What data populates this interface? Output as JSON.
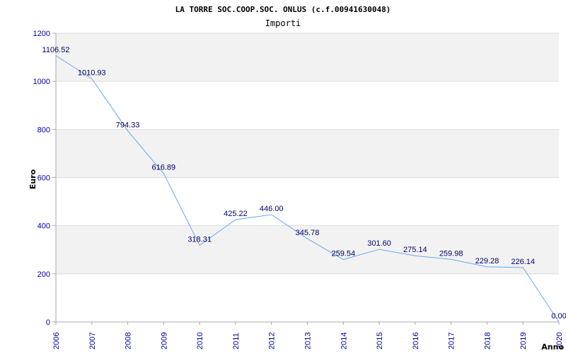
{
  "chart_data": {
    "type": "line",
    "title": "LA TORRE SOC.COOP.SOC. ONLUS (c.f.00941630048)",
    "subtitle": "Importi",
    "xlabel": "Anno",
    "ylabel": "Euro",
    "x": [
      "2006",
      "2007",
      "2008",
      "2009",
      "2010",
      "2011",
      "2012",
      "2013",
      "2014",
      "2015",
      "2016",
      "2017",
      "2018",
      "2019",
      "2020"
    ],
    "values": [
      1106.52,
      1010.93,
      794.33,
      616.89,
      318.31,
      425.22,
      446.0,
      345.78,
      259.54,
      301.6,
      275.14,
      259.98,
      229.28,
      226.14,
      0.0
    ],
    "value_labels": [
      "1106.52",
      "1010.93",
      "794.33",
      "616.89",
      "318.31",
      "425.22",
      "446.00",
      "345.78",
      "259.54",
      "301.60",
      "275.14",
      "259.98",
      "229.28",
      "226.14",
      "0.00"
    ],
    "ylim": [
      0,
      1200
    ],
    "yticks": [
      "0",
      "200",
      "400",
      "600",
      "800",
      "1000",
      "1200"
    ],
    "grid": true,
    "line_color": "#66aaee",
    "band_color": "#f2f2f2",
    "tick_color": "#0000aa",
    "label_color": "#000066"
  }
}
